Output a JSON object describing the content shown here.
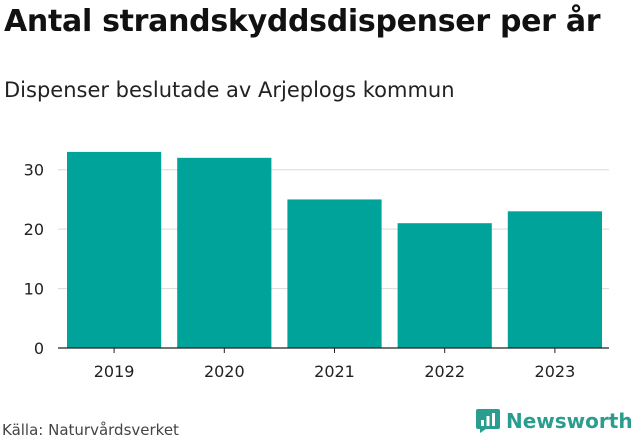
{
  "header": {
    "title": "Antal strandskyddsdispenser per år",
    "subtitle": "Dispenser beslutade av Arjeplogs kommun"
  },
  "footer": {
    "source": "Källa: Naturvårdsverket",
    "brand": "Newsworthy",
    "brand_icon": "newsworthy-logo-icon"
  },
  "colors": {
    "bar": "#00a39a",
    "grid": "#d9d9d9",
    "axis": "#222222",
    "brand": "#2b9d8f"
  },
  "chart_data": {
    "type": "bar",
    "title": "Antal strandskyddsdispenser per år",
    "subtitle": "Dispenser beslutade av Arjeplogs kommun",
    "categories": [
      "2019",
      "2020",
      "2021",
      "2022",
      "2023"
    ],
    "values": [
      33,
      32,
      25,
      21,
      23
    ],
    "ylim": [
      0,
      35
    ],
    "yticks": [
      0,
      10,
      20,
      30
    ],
    "xlabel": "",
    "ylabel": "",
    "grid": true,
    "legend": "none"
  }
}
